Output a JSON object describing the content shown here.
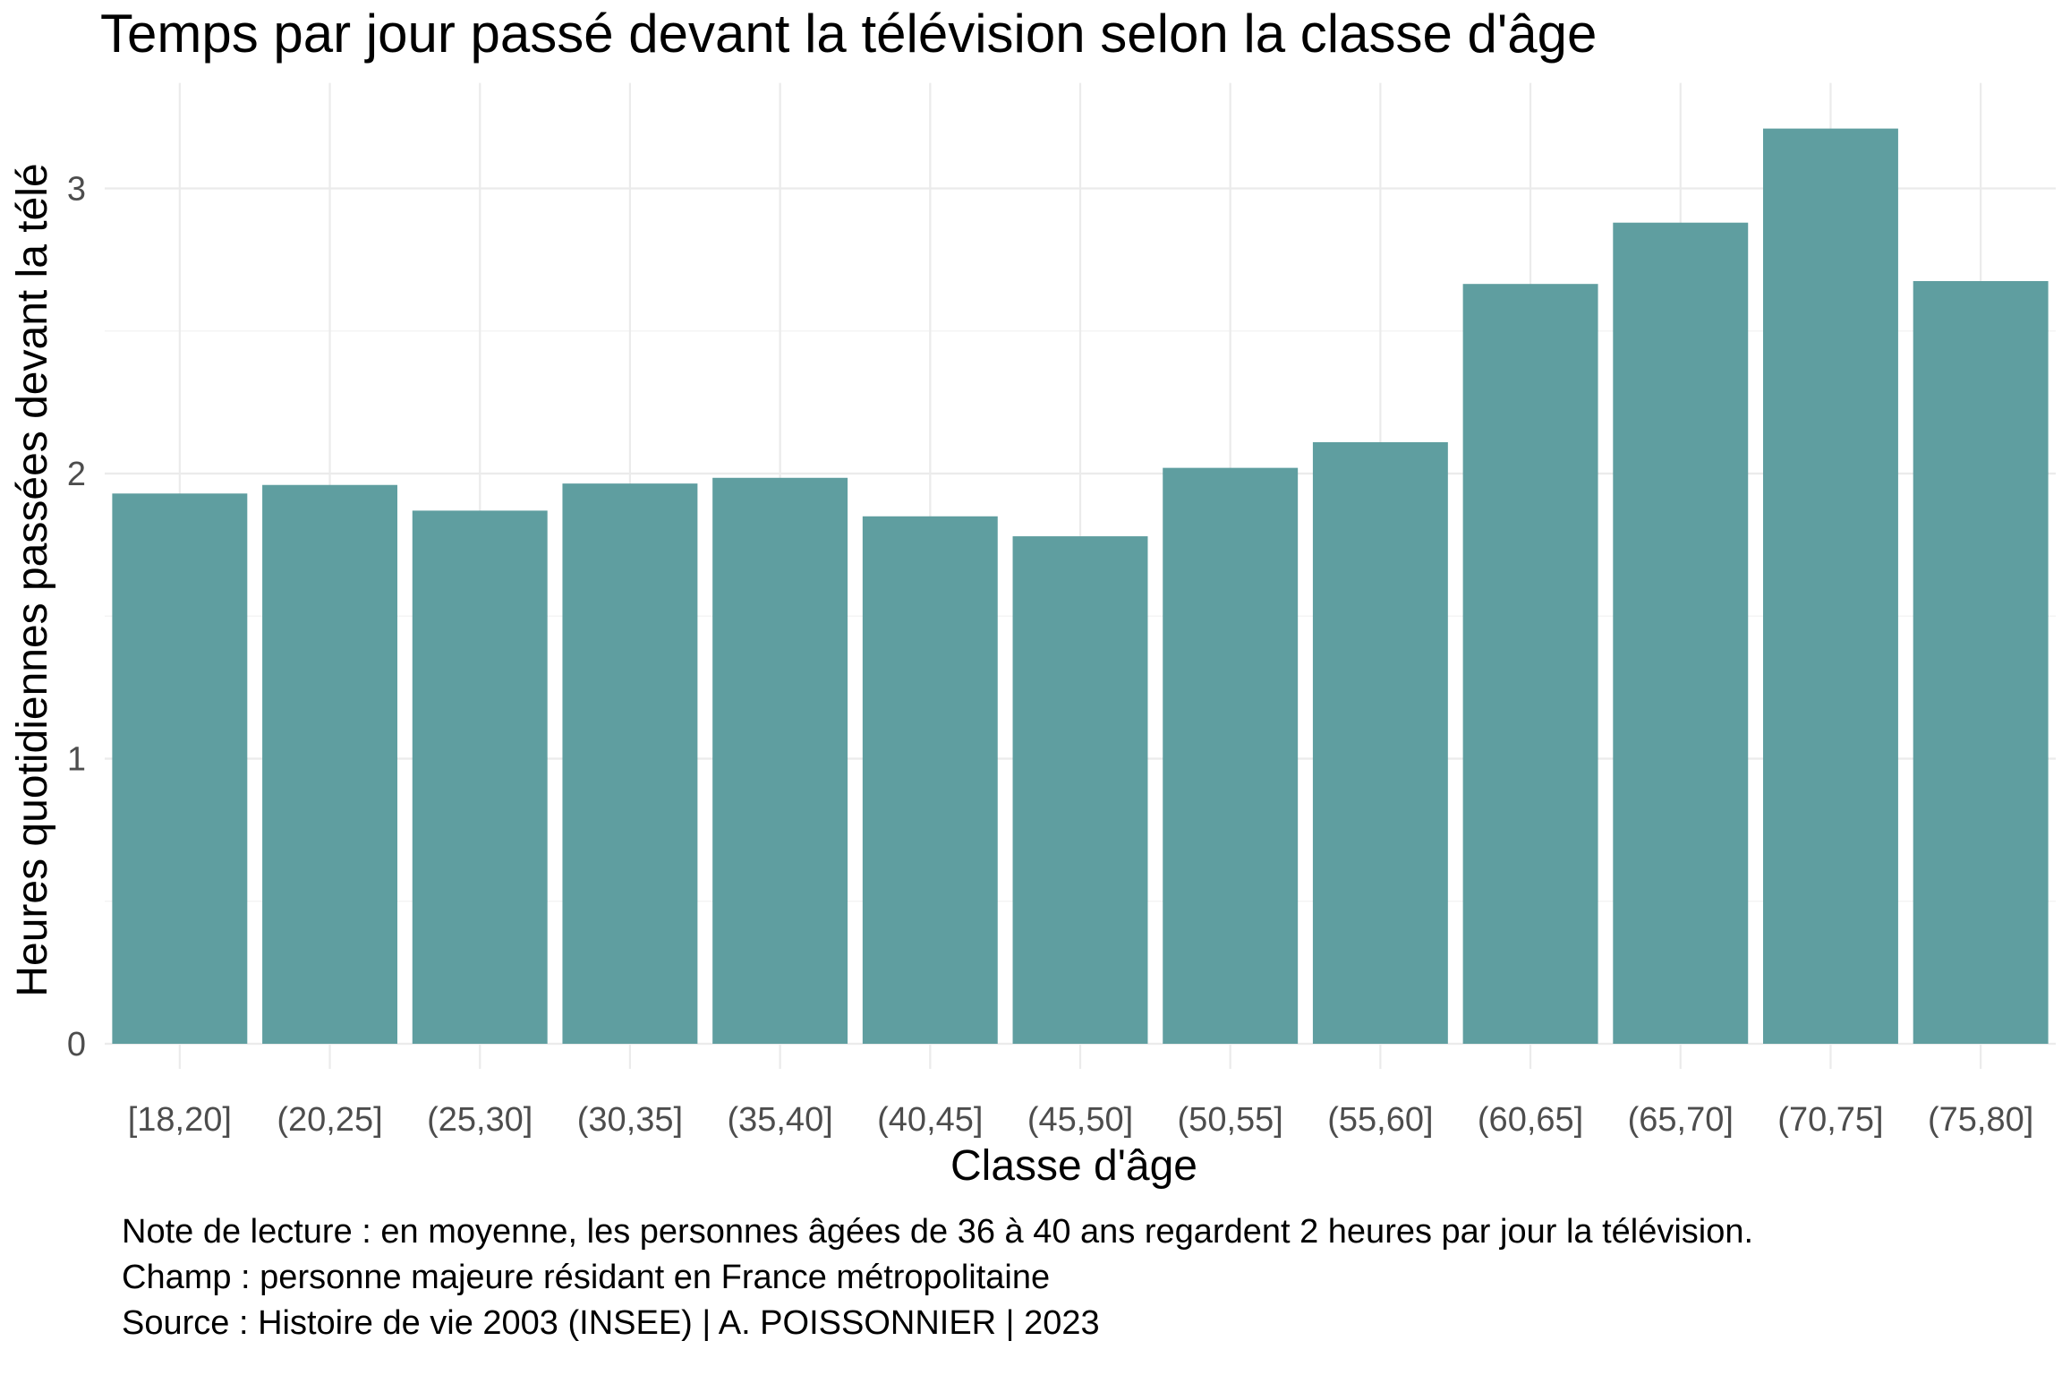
{
  "chart_data": {
    "type": "bar",
    "title": "Temps par jour passé devant la télévision selon la classe d'âge",
    "xlabel": "Classe d'âge",
    "ylabel": "Heures quotidiennes passées devant la télé",
    "categories": [
      "[18,20]",
      "(20,25]",
      "(25,30]",
      "(30,35]",
      "(35,40]",
      "(40,45]",
      "(45,50]",
      "(50,55]",
      "(55,60]",
      "(60,65]",
      "(65,70]",
      "(70,75]",
      "(75,80]"
    ],
    "values": [
      1.93,
      1.96,
      1.87,
      1.965,
      1.985,
      1.85,
      1.78,
      2.02,
      2.11,
      2.665,
      2.88,
      3.21,
      2.675
    ],
    "ylim": [
      0,
      3.37
    ],
    "yticks": [
      0,
      1,
      2,
      3
    ],
    "ytick_labels": [
      "0",
      "1",
      "2",
      "3"
    ],
    "grid": true,
    "bar_color": "#5f9ea0",
    "caption_lines": [
      "Note de lecture : en moyenne, les personnes âgées de 36 à 40 ans regardent 2 heures par jour la télévision.",
      "Champ : personne majeure résidant en France métropolitaine",
      "Source : Histoire de vie 2003 (INSEE) | A. POISSONNIER | 2023"
    ]
  }
}
